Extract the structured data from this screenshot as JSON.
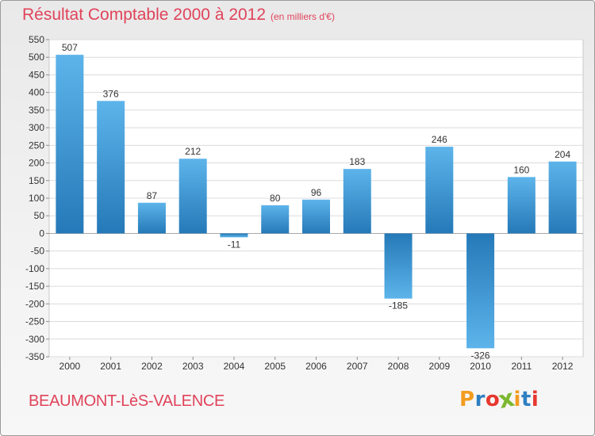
{
  "header": {
    "title": "Résultat Comptable 2000 à 2012",
    "subtitle": "(en milliers d'€)"
  },
  "footer": {
    "location": "BEAUMONT-LèS-VALENCE",
    "logo": {
      "text": "Proxiti",
      "letters": [
        {
          "char": "P",
          "color": "#f39c1f"
        },
        {
          "char": "r",
          "color": "#2f7fc1"
        },
        {
          "char": "o",
          "color": "#e7372e"
        },
        {
          "char": "x",
          "color": "#7cb82f"
        },
        {
          "char": "i",
          "color": "#f39c1f"
        },
        {
          "char": "t",
          "color": "#2f7fc1"
        },
        {
          "char": "i",
          "color": "#e7372e"
        }
      ]
    }
  },
  "colors": {
    "accent": "#e0435a",
    "bar_light": "#5db4ea",
    "bar_dark": "#2579b8"
  },
  "chart_data": {
    "type": "bar",
    "title": "Résultat Comptable 2000 à 2012",
    "subtitle": "(en milliers d'€)",
    "categories": [
      "2000",
      "2001",
      "2002",
      "2003",
      "2004",
      "2005",
      "2006",
      "2007",
      "2008",
      "2009",
      "2010",
      "2011",
      "2012"
    ],
    "values": [
      507,
      376,
      87,
      212,
      -11,
      80,
      96,
      183,
      -185,
      246,
      -326,
      160,
      204
    ],
    "data_labels": [
      "507",
      "376",
      "87",
      "212",
      "-11",
      "80",
      "96",
      "183",
      "-185",
      "246",
      "-326",
      "160",
      "204"
    ],
    "ylim": [
      -350,
      550
    ],
    "ytick_step": 50,
    "yticks": [
      "550",
      "500",
      "450",
      "400",
      "350",
      "300",
      "250",
      "200",
      "150",
      "100",
      "50",
      "0",
      "-50",
      "-100",
      "-150",
      "-200",
      "-250",
      "-300",
      "-350"
    ],
    "grid": true,
    "legend": "none",
    "xlabel": "",
    "ylabel": ""
  }
}
